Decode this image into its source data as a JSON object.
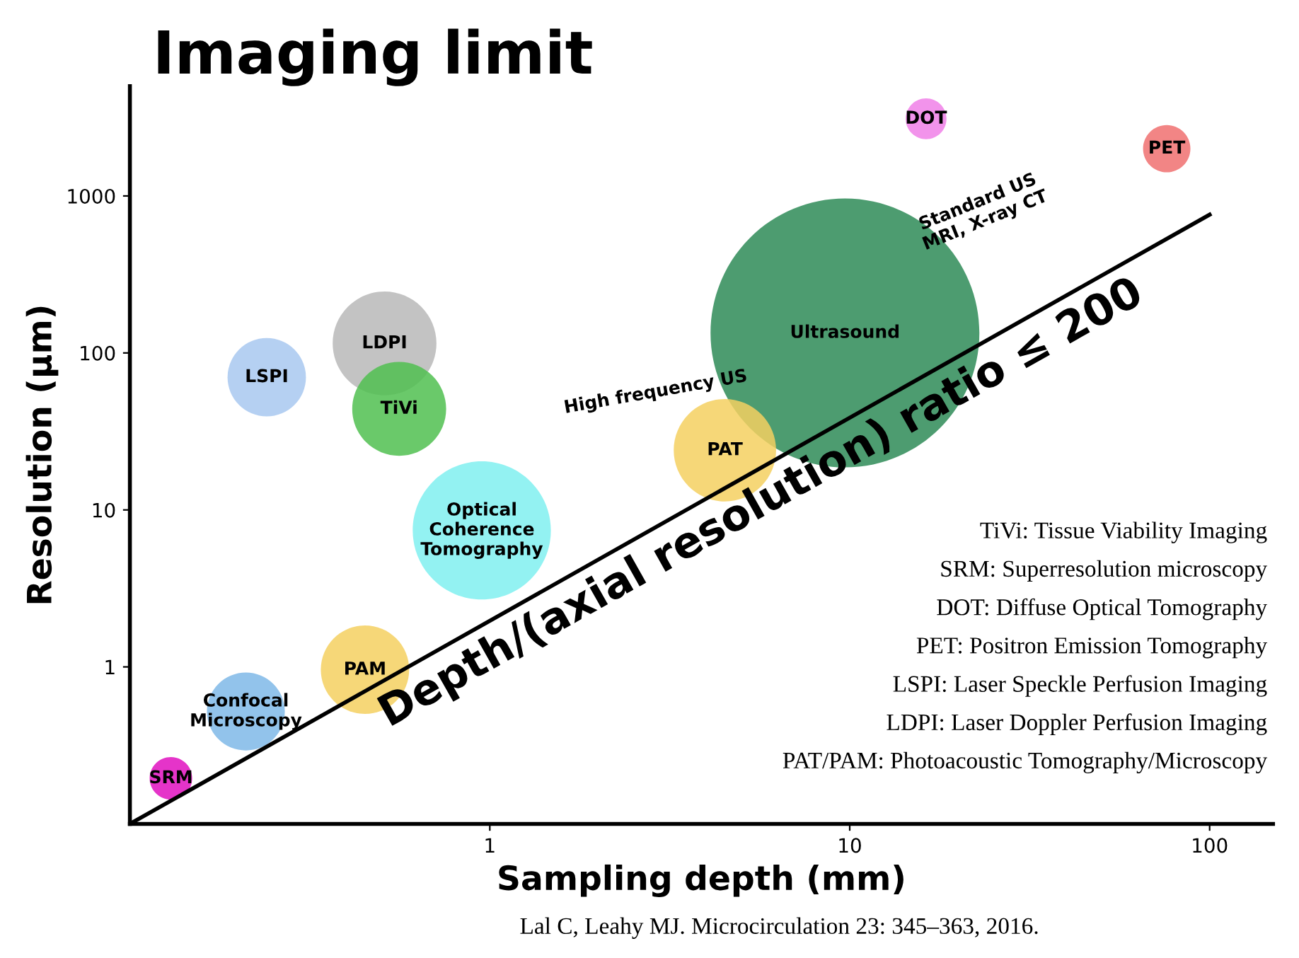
{
  "chart_data": {
    "type": "bubble",
    "title": "Imaging limit",
    "xlabel": "Sampling depth (mm)",
    "ylabel": "Resolution (µm)",
    "log": "xy",
    "xlim": [
      0.1,
      150
    ],
    "ylim": [
      0.1,
      5000
    ],
    "xticks": [
      1,
      10,
      100
    ],
    "yticks": [
      1,
      10,
      100,
      1000
    ],
    "grid": false,
    "legend": false,
    "series": [
      {
        "name": "Ultrasound",
        "color": "#2e8b57",
        "x": [
          9.7
        ],
        "values": [
          134
        ],
        "sizes": [
          1
        ]
      },
      {
        "name": "SRM",
        "color": "#e010c0",
        "x": [
          0.13
        ],
        "values": [
          0.195
        ],
        "sizes": [
          0.025
        ]
      },
      {
        "name": "Confocal Microscopy",
        "color": "#7fb8e8",
        "x": [
          0.21
        ],
        "values": [
          0.52
        ],
        "sizes": [
          0.084
        ]
      },
      {
        "name": "PAM",
        "color": "#f5d060",
        "x": [
          0.45
        ],
        "values": [
          0.96
        ],
        "sizes": [
          0.108
        ]
      },
      {
        "name": "Optical Coherence Tomography",
        "color": "#80f0f0",
        "x": [
          0.95
        ],
        "values": [
          7.4
        ],
        "sizes": [
          0.264
        ]
      },
      {
        "name": "LDPI",
        "color": "#b8b8b8",
        "x": [
          0.51
        ],
        "values": [
          115
        ],
        "sizes": [
          0.149
        ]
      },
      {
        "name": "TiVi",
        "color": "#50c050",
        "x": [
          0.56
        ],
        "values": [
          44
        ],
        "sizes": [
          0.122
        ]
      },
      {
        "name": "LSPI",
        "color": "#a8c8f0",
        "x": [
          0.24
        ],
        "values": [
          70
        ],
        "sizes": [
          0.085
        ]
      },
      {
        "name": "PAT",
        "color": "#f5d060",
        "x": [
          4.5
        ],
        "values": [
          24
        ],
        "sizes": [
          0.145
        ]
      },
      {
        "name": "DOT",
        "color": "#f080e8",
        "x": [
          16.3
        ],
        "values": [
          3100
        ],
        "sizes": [
          0.023
        ]
      },
      {
        "name": "PET",
        "color": "#f07070",
        "x": [
          76
        ],
        "values": [
          2000
        ],
        "sizes": [
          0.031
        ]
      },
      {
        "name": "Depth/(axial resolution) ratio ≤ 200",
        "type": "line",
        "color": "#000000",
        "x": [
          0.1,
          100
        ],
        "values": [
          0.1,
          760
        ]
      }
    ],
    "annotations": [
      "High frequency US",
      "Standard US\nMRI, X-ray CT",
      "TiVi: Tissue Viability Imaging",
      "SRM: Superresolution microscopy",
      "DOT: Diffuse Optical Tomography",
      "PET: Positron Emission Tomography",
      "LSPI: Laser Speckle Perfusion Imaging",
      "LDPI: Laser Doppler Perfusion Imaging",
      "PAT/PAM: Photoacoustic Tomography/Microscopy",
      "Lal C, Leahy MJ. Microcirculation 23: 345–363, 2016."
    ]
  }
}
